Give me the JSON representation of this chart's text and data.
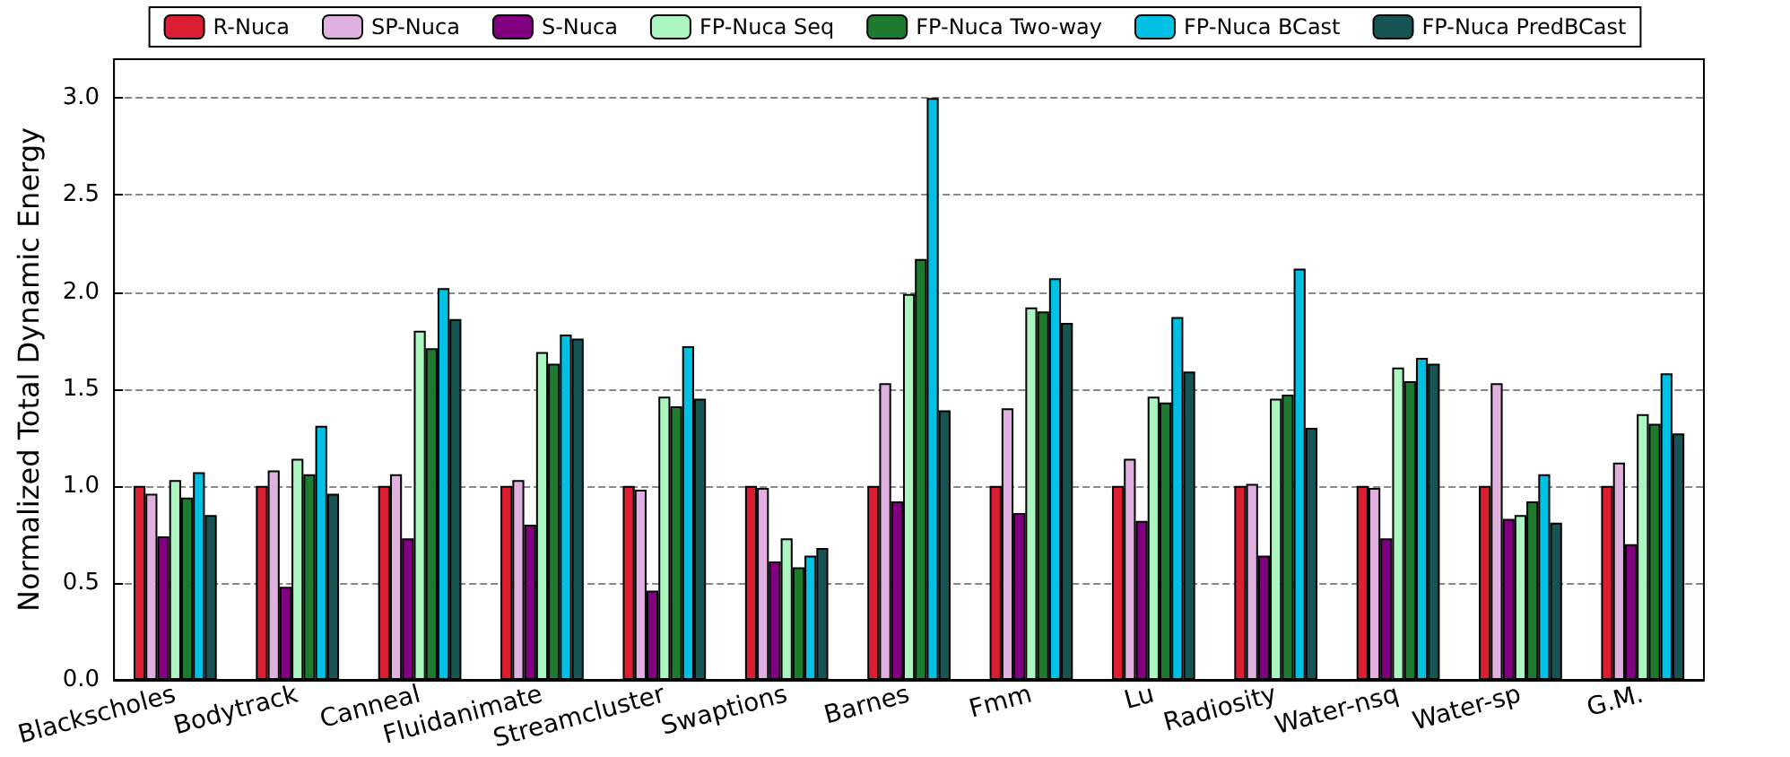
{
  "chart_data": {
    "type": "bar",
    "ylabel": "Normalized Total Dynamic Energy",
    "categories": [
      "Blackscholes",
      "Bodytrack",
      "Canneal",
      "Fluidanimate",
      "Streamcluster",
      "Swaptions",
      "Barnes",
      "Fmm",
      "Lu",
      "Radiosity",
      "Water-nsq",
      "Water-sp",
      "G.M."
    ],
    "series": [
      {
        "name": "R-Nuca",
        "color": "#dc1e32",
        "values": [
          1,
          1,
          1,
          1,
          1,
          1,
          1,
          1,
          1,
          1,
          1,
          1,
          1
        ]
      },
      {
        "name": "SP-Nuca",
        "color": "#dfb0e0",
        "values": [
          0.96,
          1.08,
          1.06,
          1.03,
          0.98,
          0.99,
          1.53,
          1.4,
          1.14,
          1.01,
          0.99,
          1.53,
          1.12
        ]
      },
      {
        "name": "S-Nuca",
        "color": "#800080",
        "values": [
          0.74,
          0.48,
          0.73,
          0.8,
          0.46,
          0.61,
          0.92,
          0.86,
          0.82,
          0.64,
          0.73,
          0.83,
          0.7
        ]
      },
      {
        "name": "FP-Nuca Seq",
        "color": "#aaf5c0",
        "values": [
          1.03,
          1.14,
          1.8,
          1.69,
          1.46,
          0.73,
          1.99,
          1.92,
          1.46,
          1.45,
          1.61,
          0.85,
          1.37
        ]
      },
      {
        "name": "FP-Nuca Two-way",
        "color": "#1e7a2e",
        "values": [
          0.94,
          1.06,
          1.71,
          1.63,
          1.41,
          0.58,
          2.17,
          1.9,
          1.43,
          1.47,
          1.54,
          0.92,
          1.32
        ]
      },
      {
        "name": "FP-Nuca BCast",
        "color": "#00c0e4",
        "values": [
          1.07,
          1.31,
          2.02,
          1.78,
          1.72,
          0.64,
          3.0,
          2.07,
          1.87,
          2.12,
          1.66,
          1.06,
          1.58
        ]
      },
      {
        "name": "FP-Nuca PredBCast",
        "color": "#175555",
        "values": [
          0.85,
          0.96,
          1.86,
          1.76,
          1.45,
          0.68,
          1.39,
          1.84,
          1.59,
          1.3,
          1.63,
          0.81,
          1.27
        ]
      }
    ],
    "ylim": [
      0,
      3.2
    ],
    "yticks": [
      {
        "value": 0,
        "label": "0.0"
      },
      {
        "value": 0.5,
        "label": "0.5"
      },
      {
        "value": 1,
        "label": "1.0"
      },
      {
        "value": 1.5,
        "label": "1.5"
      },
      {
        "value": 2,
        "label": "2.0"
      },
      {
        "value": 2.5,
        "label": "2.5"
      },
      {
        "value": 3,
        "label": "3.0"
      }
    ],
    "grid": "y",
    "legend": "top"
  }
}
